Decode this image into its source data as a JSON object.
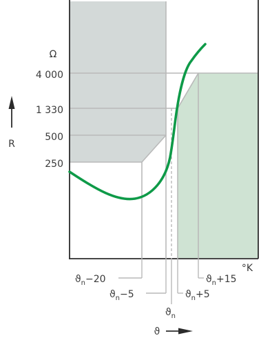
{
  "axes": {
    "unit_y": "Ω",
    "unit_x": "°K",
    "y_symbol": "R",
    "x_symbol": "ϑ"
  },
  "y_ticks": [
    "4 000",
    "1 330",
    "500",
    "250"
  ],
  "x_ticks": [
    {
      "base": "ϑ",
      "sub": "n",
      "suffix": "−20"
    },
    {
      "base": "ϑ",
      "sub": "n",
      "suffix": "−5"
    },
    {
      "base": "ϑ",
      "sub": "n",
      "suffix": ""
    },
    {
      "base": "ϑ",
      "sub": "n",
      "suffix": "+5"
    },
    {
      "base": "ϑ",
      "sub": "n",
      "suffix": "+15"
    }
  ],
  "colors": {
    "gray_region": "#d3d9d8",
    "green_region": "#cfe3d3",
    "curve": "#0e9a48",
    "grid": "#b9b9b9",
    "frame": "#2b2b2b"
  }
}
